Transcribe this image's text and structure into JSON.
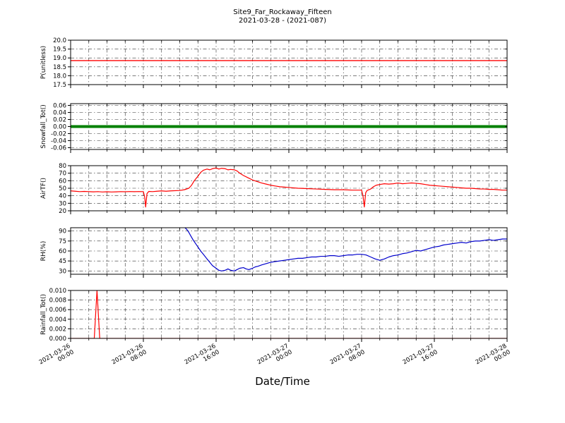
{
  "figure": {
    "title": "Site9_Far_Rockaway_Fifteen",
    "subtitle": "2021-03-28 - (2021-087)",
    "xlabel": "Date/Time"
  },
  "chart_data": {
    "type": "line",
    "title": "Site9_Far_Rockaway_Fifteen",
    "subtitle": "2021-03-28 - (2021-087)",
    "xlabel": "Date/Time",
    "grid": {
      "on": true,
      "style": "dash-dot",
      "color": "#333333"
    },
    "x_axis": {
      "xlim_hours": [
        0,
        48
      ],
      "minor_tick_step_hours": 2,
      "major_ticks_hours": [
        0,
        8,
        16,
        24,
        32,
        40,
        48
      ],
      "major_tick_labels": [
        [
          "2021-03-26",
          "00:00"
        ],
        [
          "2021-03-26",
          "08:00"
        ],
        [
          "2021-03-26",
          "16:00"
        ],
        [
          "2021-03-27",
          "00:00"
        ],
        [
          "2021-03-27",
          "08:00"
        ],
        [
          "2021-03-27",
          "16:00"
        ],
        [
          "2021-03-28",
          "00:00"
        ]
      ]
    },
    "panels": [
      {
        "ylabel": "P(unitless)",
        "ylim": [
          17.5,
          20.0
        ],
        "yticks": [
          17.5,
          18.0,
          18.5,
          19.0,
          19.5,
          20.0
        ],
        "ytick_decimals": 1,
        "series": [
          {
            "name": "P",
            "color": "#ff0000",
            "width": 1.4,
            "points": [
              [
                0,
                18.85
              ],
              [
                48,
                18.85
              ]
            ]
          }
        ]
      },
      {
        "ylabel": "Snowfall_Tot()",
        "ylim": [
          -0.065,
          0.065
        ],
        "yticks": [
          -0.06,
          -0.04,
          -0.02,
          0.0,
          0.02,
          0.04,
          0.06
        ],
        "ytick_decimals": 2,
        "series": [
          {
            "name": "Snowfall_Tot",
            "color": "#008000",
            "width": 4,
            "points": [
              [
                0,
                0.0
              ],
              [
                48,
                0.0
              ]
            ]
          }
        ]
      },
      {
        "ylabel": "AirTF()",
        "ylim": [
          20,
          80
        ],
        "yticks": [
          20,
          30,
          40,
          50,
          60,
          70,
          80
        ],
        "ytick_decimals": 0,
        "series": [
          {
            "name": "AirTF",
            "color": "#ff0000",
            "width": 1.2,
            "points": [
              [
                0,
                46.5
              ],
              [
                0.5,
                46
              ],
              [
                1,
                45.5
              ],
              [
                1.5,
                45.8
              ],
              [
                2,
                45.5
              ],
              [
                2.5,
                45.2
              ],
              [
                3,
                45.5
              ],
              [
                3.5,
                45
              ],
              [
                4,
                45.3
              ],
              [
                4.5,
                45
              ],
              [
                5,
                45.2
              ],
              [
                5.5,
                45.5
              ],
              [
                6,
                45.3
              ],
              [
                6.5,
                45.6
              ],
              [
                7,
                45.4
              ],
              [
                7.5,
                45.6
              ],
              [
                8,
                45.5
              ],
              [
                8.15,
                38
              ],
              [
                8.25,
                25
              ],
              [
                8.4,
                43
              ],
              [
                8.6,
                45.8
              ],
              [
                9,
                45.5
              ],
              [
                9.5,
                46
              ],
              [
                10,
                46.5
              ],
              [
                10.5,
                46
              ],
              [
                11,
                46.5
              ],
              [
                12,
                47
              ],
              [
                12.5,
                48
              ],
              [
                13,
                50
              ],
              [
                13.3,
                54
              ],
              [
                13.6,
                60
              ],
              [
                14,
                66
              ],
              [
                14.3,
                71
              ],
              [
                14.6,
                74
              ],
              [
                15,
                75.5
              ],
              [
                15.3,
                74.5
              ],
              [
                15.6,
                76
              ],
              [
                16,
                77
              ],
              [
                16.3,
                75.5
              ],
              [
                16.6,
                76.5
              ],
              [
                17,
                76
              ],
              [
                17.3,
                74.5
              ],
              [
                17.6,
                75
              ],
              [
                18,
                74.5
              ],
              [
                18.3,
                73
              ],
              [
                18.6,
                70
              ],
              [
                19,
                67
              ],
              [
                19.5,
                64
              ],
              [
                20,
                61
              ],
              [
                20.5,
                59
              ],
              [
                21,
                57
              ],
              [
                21.5,
                55.5
              ],
              [
                22,
                54
              ],
              [
                22.5,
                53
              ],
              [
                23,
                52
              ],
              [
                23.5,
                51.5
              ],
              [
                24,
                51
              ],
              [
                25,
                50
              ],
              [
                26,
                49.5
              ],
              [
                27,
                49
              ],
              [
                28,
                48.5
              ],
              [
                29,
                48
              ],
              [
                30,
                48
              ],
              [
                31,
                47.5
              ],
              [
                32,
                47.5
              ],
              [
                32.15,
                40
              ],
              [
                32.3,
                25
              ],
              [
                32.45,
                44
              ],
              [
                32.6,
                47
              ],
              [
                33,
                49
              ],
              [
                33.3,
                52
              ],
              [
                33.6,
                54
              ],
              [
                34,
                55
              ],
              [
                34.5,
                56
              ],
              [
                35,
                55.5
              ],
              [
                35.5,
                56
              ],
              [
                36,
                57
              ],
              [
                36.5,
                56
              ],
              [
                37,
                56.5
              ],
              [
                37.5,
                57
              ],
              [
                38,
                56.5
              ],
              [
                38.5,
                56
              ],
              [
                39,
                55
              ],
              [
                39.5,
                54
              ],
              [
                40,
                53.5
              ],
              [
                40.5,
                53
              ],
              [
                41,
                52.5
              ],
              [
                41.5,
                52
              ],
              [
                42,
                51.5
              ],
              [
                42.5,
                51
              ],
              [
                43,
                50.5
              ],
              [
                43.5,
                50
              ],
              [
                44,
                50
              ],
              [
                44.5,
                49.5
              ],
              [
                45,
                49
              ],
              [
                45.5,
                49
              ],
              [
                46,
                48.5
              ],
              [
                46.5,
                48.5
              ],
              [
                47,
                48
              ],
              [
                47.5,
                47.5
              ],
              [
                48,
                47.5
              ]
            ]
          }
        ]
      },
      {
        "ylabel": "RH(%)",
        "ylim": [
          25,
          95
        ],
        "yticks": [
          30,
          45,
          60,
          75,
          90
        ],
        "ytick_decimals": 0,
        "series": [
          {
            "name": "RH",
            "color": "#0000cc",
            "width": 1.2,
            "points": [
              [
                0,
                96
              ],
              [
                12.5,
                96
              ],
              [
                12.8,
                92
              ],
              [
                13,
                88
              ],
              [
                13.2,
                83
              ],
              [
                13.5,
                76
              ],
              [
                13.8,
                70
              ],
              [
                14,
                66
              ],
              [
                14.3,
                60
              ],
              [
                14.6,
                55
              ],
              [
                15,
                48
              ],
              [
                15.3,
                43
              ],
              [
                15.6,
                38
              ],
              [
                16,
                34
              ],
              [
                16.3,
                31
              ],
              [
                16.6,
                30
              ],
              [
                17,
                31
              ],
              [
                17.3,
                33
              ],
              [
                17.6,
                31
              ],
              [
                18,
                30
              ],
              [
                18.3,
                32
              ],
              [
                18.6,
                34
              ],
              [
                19,
                35
              ],
              [
                19.3,
                33
              ],
              [
                19.6,
                32
              ],
              [
                20,
                34
              ],
              [
                20.3,
                36
              ],
              [
                20.6,
                37
              ],
              [
                21,
                39
              ],
              [
                21.5,
                41
              ],
              [
                22,
                43
              ],
              [
                22.5,
                44
              ],
              [
                23,
                45
              ],
              [
                23.5,
                46
              ],
              [
                24,
                47
              ],
              [
                24.5,
                48
              ],
              [
                25,
                49
              ],
              [
                25.5,
                49
              ],
              [
                26,
                50
              ],
              [
                26.5,
                51
              ],
              [
                27,
                51
              ],
              [
                27.5,
                52
              ],
              [
                28,
                52
              ],
              [
                28.5,
                53
              ],
              [
                29,
                53
              ],
              [
                29.5,
                52
              ],
              [
                30,
                53
              ],
              [
                30.5,
                54
              ],
              [
                31,
                54
              ],
              [
                31.5,
                55
              ],
              [
                32,
                55
              ],
              [
                32.5,
                54
              ],
              [
                33,
                51
              ],
              [
                33.5,
                48
              ],
              [
                34,
                46
              ],
              [
                34.5,
                48
              ],
              [
                35,
                51
              ],
              [
                35.5,
                53
              ],
              [
                36,
                54
              ],
              [
                36.5,
                56
              ],
              [
                37,
                57
              ],
              [
                37.5,
                59
              ],
              [
                38,
                61
              ],
              [
                38.5,
                60
              ],
              [
                39,
                62
              ],
              [
                39.5,
                64
              ],
              [
                40,
                66
              ],
              [
                40.5,
                67
              ],
              [
                41,
                69
              ],
              [
                41.5,
                70
              ],
              [
                42,
                71
              ],
              [
                42.5,
                72
              ],
              [
                43,
                73
              ],
              [
                43.5,
                72
              ],
              [
                44,
                74
              ],
              [
                44.5,
                75
              ],
              [
                45,
                75
              ],
              [
                45.5,
                76
              ],
              [
                46,
                77
              ],
              [
                46.5,
                76
              ],
              [
                47,
                77
              ],
              [
                47.5,
                78
              ],
              [
                48,
                78
              ]
            ]
          }
        ]
      },
      {
        "ylabel": "Rainfall_Tot()",
        "ylim": [
          0.0,
          0.01
        ],
        "yticks": [
          0.0,
          0.002,
          0.004,
          0.006,
          0.008,
          0.01
        ],
        "ytick_decimals": 3,
        "series": [
          {
            "name": "Rainfall_Tot",
            "color": "#ff0000",
            "width": 1.2,
            "points": [
              [
                0,
                0.0
              ],
              [
                2.6,
                0.0
              ],
              [
                2.9,
                0.01
              ],
              [
                3.2,
                0.0
              ],
              [
                48,
                0.0
              ]
            ]
          }
        ]
      }
    ]
  }
}
